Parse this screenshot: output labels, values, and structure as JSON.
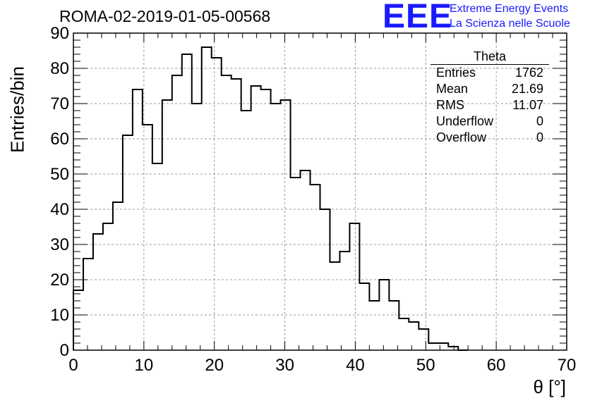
{
  "chart_data": {
    "type": "histogram",
    "title": "ROMA-02-2019-01-05-00568",
    "xlabel": "θ [°]",
    "ylabel": "Entries/bin",
    "xlim": [
      0,
      70
    ],
    "ylim": [
      0,
      90
    ],
    "xticks": [
      0,
      10,
      20,
      30,
      40,
      50,
      60,
      70
    ],
    "yticks": [
      0,
      10,
      20,
      30,
      40,
      50,
      60,
      70,
      80,
      90
    ],
    "grid": true,
    "bin_width": 1.4,
    "bin_start": 0,
    "values": [
      17,
      26,
      33,
      36,
      42,
      61,
      74,
      64,
      53,
      71,
      78,
      84,
      70,
      86,
      83,
      78,
      77,
      68,
      75,
      74,
      70,
      71,
      49,
      51,
      47,
      40,
      25,
      28,
      36,
      19,
      14,
      20,
      14,
      9,
      8,
      6,
      2,
      2,
      1,
      0
    ],
    "stats": {
      "name": "Theta",
      "rows": [
        {
          "label": "Entries",
          "value": "1762"
        },
        {
          "label": "Mean",
          "value": "21.69"
        },
        {
          "label": "RMS",
          "value": "11.07"
        },
        {
          "label": "Underflow",
          "value": "0"
        },
        {
          "label": "Overflow",
          "value": "0"
        }
      ]
    }
  },
  "logo": {
    "mark": "EEE",
    "line1": "Extreme Energy Events",
    "line2": "La Scienza nelle Scuole"
  },
  "colors": {
    "logo": "#1a1aff",
    "histogram": "#000000",
    "grid": "#999999"
  }
}
